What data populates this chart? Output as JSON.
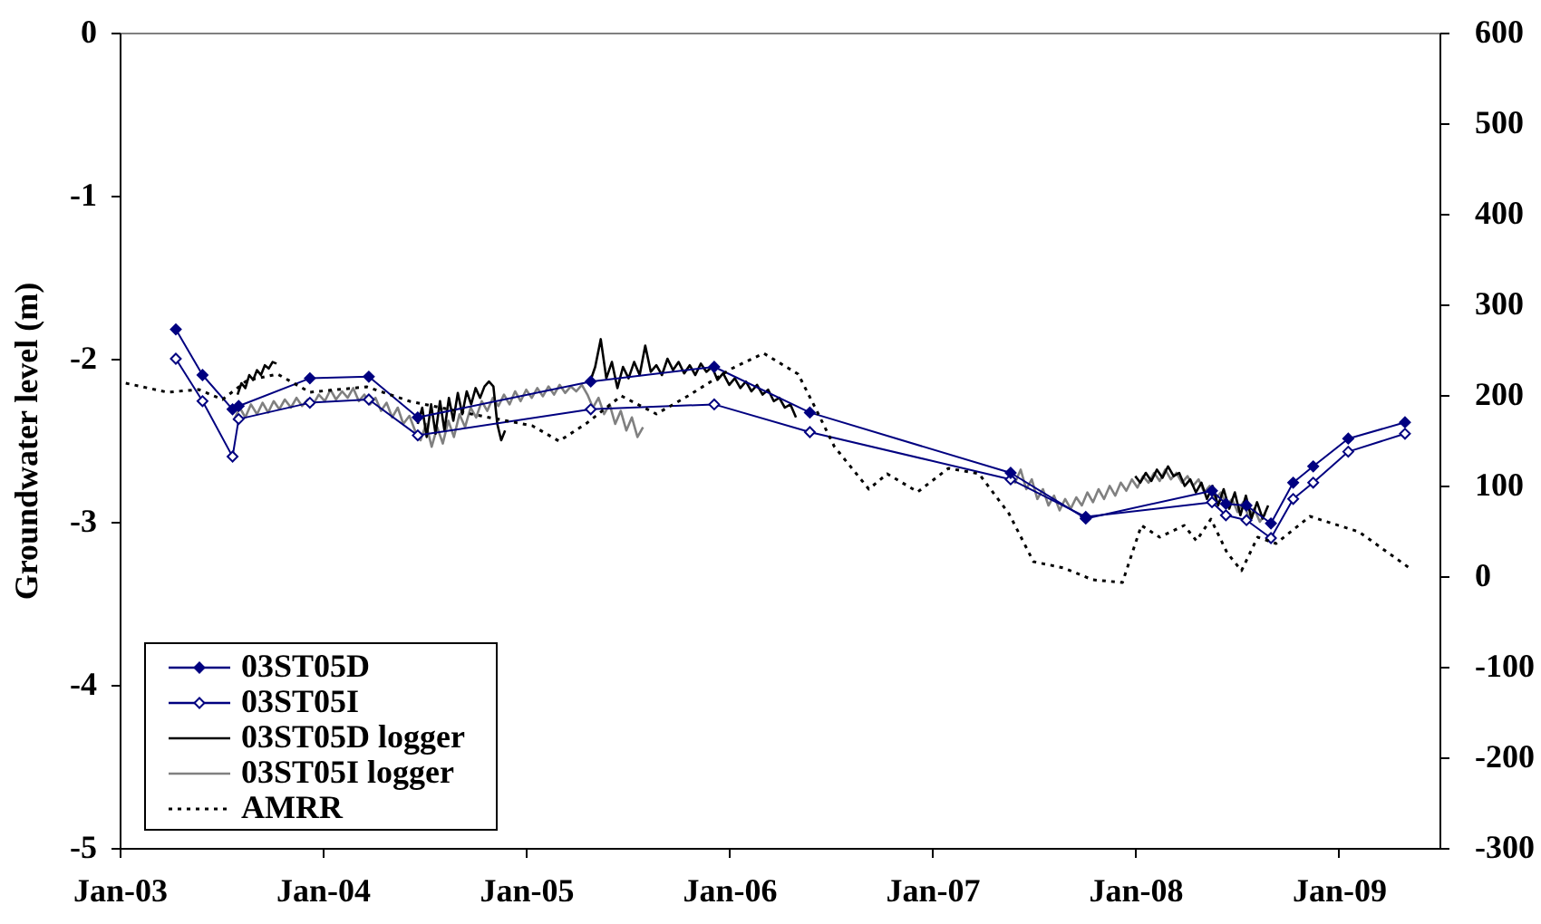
{
  "chart_data": {
    "type": "line",
    "ylabel": "Groundwater level (m)",
    "xlim": [
      "2003-01-01",
      "2009-07-01"
    ],
    "xticks": [
      {
        "value": "2003-01-01",
        "label": "Jan-03"
      },
      {
        "value": "2004-01-01",
        "label": "Jan-04"
      },
      {
        "value": "2005-01-01",
        "label": "Jan-05"
      },
      {
        "value": "2006-01-01",
        "label": "Jan-06"
      },
      {
        "value": "2007-01-01",
        "label": "Jan-07"
      },
      {
        "value": "2008-01-01",
        "label": "Jan-08"
      },
      {
        "value": "2009-01-01",
        "label": "Jan-09"
      }
    ],
    "ylim": [
      -5,
      0
    ],
    "yticks": [
      -5,
      -4,
      -3,
      -2,
      -1,
      0
    ],
    "y2lim": [
      -300,
      600
    ],
    "y2ticks": [
      -300,
      -200,
      -100,
      0,
      100,
      200,
      300,
      400,
      500,
      600
    ],
    "legend": "bottom left",
    "series": [
      {
        "name": "03ST05D",
        "color": "#000080",
        "marker": "diamond",
        "x": [
          "2003-04-12",
          "2003-05-30",
          "2003-07-23",
          "2003-08-03",
          "2003-12-09",
          "2004-03-24",
          "2004-06-20",
          "2005-04-27",
          "2005-12-05",
          "2006-05-26",
          "2007-05-22",
          "2007-10-04",
          "2008-05-18",
          "2008-06-12",
          "2008-07-19",
          "2008-09-01",
          "2008-10-11",
          "2008-11-16",
          "2009-01-18",
          "2009-04-30"
        ],
        "values": [
          -1.82,
          -2.1,
          -2.31,
          -2.29,
          -2.12,
          -2.11,
          -2.36,
          -2.14,
          -2.05,
          -2.33,
          -2.7,
          -2.98,
          -2.81,
          -2.89,
          -2.9,
          -3.01,
          -2.76,
          -2.66,
          -2.49,
          -2.39
        ]
      },
      {
        "name": "03ST05I",
        "color": "#000080",
        "marker": "diamond",
        "x": [
          "2003-04-12",
          "2003-05-30",
          "2003-07-23",
          "2003-08-03",
          "2003-12-09",
          "2004-03-24",
          "2004-06-20",
          "2005-04-27",
          "2005-12-05",
          "2006-05-26",
          "2007-05-22",
          "2007-10-04",
          "2008-05-18",
          "2008-06-12",
          "2008-07-19",
          "2008-09-01",
          "2008-10-11",
          "2008-11-16",
          "2009-01-18",
          "2009-04-30"
        ],
        "values": [
          -2.0,
          -2.26,
          -2.6,
          -2.37,
          -2.27,
          -2.25,
          -2.47,
          -2.31,
          -2.28,
          -2.45,
          -2.74,
          -2.97,
          -2.88,
          -2.96,
          -2.99,
          -3.1,
          -2.86,
          -2.76,
          -2.57,
          -2.46
        ]
      },
      {
        "name": "03ST05D logger",
        "color": "#000000",
        "marker": "none",
        "x": [
          "2003-08-01",
          "2003-08-08",
          "2003-08-15",
          "2003-08-22",
          "2003-08-29",
          "2003-09-05",
          "2003-09-12",
          "2003-09-19",
          "2003-09-26",
          "2003-10-03",
          "2003-10-10",
          "2004-01-01",
          "2004-06-20",
          "2004-06-28",
          "2004-07-06",
          "2004-07-14",
          "2004-07-22",
          "2004-07-30",
          "2004-08-07",
          "2004-08-15",
          "2004-08-23",
          "2004-08-31",
          "2004-09-08",
          "2004-09-16",
          "2004-09-24",
          "2004-10-02",
          "2004-10-10",
          "2004-10-18",
          "2004-10-26",
          "2004-11-03",
          "2004-11-10",
          "2004-11-17",
          "2004-11-24",
          "2005-02-01",
          "2005-04-25",
          "2005-05-05",
          "2005-05-15",
          "2005-05-25",
          "2005-06-04",
          "2005-06-14",
          "2005-06-24",
          "2005-07-04",
          "2005-07-14",
          "2005-07-24",
          "2005-08-03",
          "2005-08-13",
          "2005-08-23",
          "2005-09-02",
          "2005-09-12",
          "2005-09-22",
          "2005-10-02",
          "2005-10-12",
          "2005-10-22",
          "2005-11-01",
          "2005-11-11",
          "2005-11-21",
          "2005-12-01",
          "2005-12-11",
          "2005-12-21",
          "2006-01-01",
          "2006-01-11",
          "2006-01-21",
          "2006-01-31",
          "2006-02-10",
          "2006-02-20",
          "2006-03-02",
          "2006-03-12",
          "2006-03-22",
          "2006-04-01",
          "2006-04-11",
          "2006-04-21",
          "2006-05-01",
          "2007-01-01",
          "2008-01-01",
          "2008-01-10",
          "2008-01-20",
          "2008-01-30",
          "2008-02-09",
          "2008-02-19",
          "2008-02-29",
          "2008-03-10",
          "2008-03-20",
          "2008-03-30",
          "2008-04-09",
          "2008-04-19",
          "2008-04-29",
          "2008-05-09",
          "2008-05-19",
          "2008-05-29",
          "2008-06-08",
          "2008-06-18",
          "2008-06-28",
          "2008-07-08",
          "2008-07-18",
          "2008-07-28",
          "2008-08-07",
          "2008-08-17",
          "2008-08-27"
        ],
        "values": [
          -2.22,
          -2.15,
          -2.18,
          -2.1,
          -2.13,
          -2.07,
          -2.1,
          -2.04,
          -2.06,
          -2.02,
          -2.03,
          null,
          -2.4,
          -2.3,
          -2.48,
          -2.28,
          -2.46,
          -2.26,
          -2.44,
          -2.24,
          -2.38,
          -2.21,
          -2.34,
          -2.2,
          -2.28,
          -2.18,
          -2.24,
          -2.17,
          -2.14,
          -2.17,
          -2.4,
          -2.5,
          -2.44,
          null,
          -2.15,
          -2.05,
          -1.88,
          -2.12,
          -2.02,
          -2.18,
          -2.05,
          -2.12,
          -2.02,
          -2.1,
          -1.92,
          -2.08,
          -2.04,
          -2.1,
          -2.0,
          -2.07,
          -2.02,
          -2.09,
          -2.04,
          -2.1,
          -2.03,
          -2.08,
          -2.05,
          -2.13,
          -2.09,
          -2.16,
          -2.12,
          -2.18,
          -2.14,
          -2.2,
          -2.16,
          -2.22,
          -2.19,
          -2.26,
          -2.24,
          -2.3,
          -2.28,
          -2.36,
          null,
          -2.72,
          -2.76,
          -2.7,
          -2.75,
          -2.68,
          -2.73,
          -2.66,
          -2.72,
          -2.7,
          -2.78,
          -2.74,
          -2.82,
          -2.76,
          -2.86,
          -2.78,
          -2.9,
          -2.8,
          -2.92,
          -2.82,
          -2.96,
          -2.84,
          -2.98,
          -2.88,
          -2.98,
          -2.9
        ]
      },
      {
        "name": "03ST05I logger",
        "color": "#808080",
        "marker": "none",
        "x": [
          "2003-07-25",
          "2003-08-05",
          "2003-08-15",
          "2003-08-25",
          "2003-09-05",
          "2003-09-15",
          "2003-09-25",
          "2003-10-05",
          "2003-10-15",
          "2003-10-25",
          "2003-11-05",
          "2003-11-15",
          "2003-11-25",
          "2003-12-05",
          "2003-12-15",
          "2003-12-25",
          "2004-01-05",
          "2004-01-15",
          "2004-01-25",
          "2004-02-05",
          "2004-02-15",
          "2004-02-25",
          "2004-03-06",
          "2004-03-16",
          "2004-03-26",
          "2004-04-05",
          "2004-04-15",
          "2004-04-25",
          "2004-05-05",
          "2004-05-15",
          "2004-05-25",
          "2004-06-05",
          "2004-06-15",
          "2004-06-25",
          "2004-07-05",
          "2004-07-15",
          "2004-07-25",
          "2004-08-04",
          "2004-08-14",
          "2004-08-24",
          "2004-09-03",
          "2004-09-13",
          "2004-09-23",
          "2004-10-03",
          "2004-10-13",
          "2004-10-23",
          "2004-11-02",
          "2004-11-12",
          "2004-11-22",
          "2004-12-02",
          "2004-12-12",
          "2004-12-22",
          "2005-01-01",
          "2005-01-11",
          "2005-01-21",
          "2005-01-31",
          "2005-02-10",
          "2005-02-20",
          "2005-03-02",
          "2005-03-12",
          "2005-03-22",
          "2005-04-01",
          "2005-04-11",
          "2005-04-21",
          "2005-05-01",
          "2005-05-11",
          "2005-05-21",
          "2005-05-31",
          "2005-06-10",
          "2005-06-20",
          "2005-06-30",
          "2005-07-10",
          "2005-07-20",
          "2005-07-30",
          "2006-01-01",
          "2007-05-20",
          "2007-05-30",
          "2007-06-09",
          "2007-06-19",
          "2007-06-29",
          "2007-07-09",
          "2007-07-19",
          "2007-07-29",
          "2007-08-08",
          "2007-08-18",
          "2007-08-28",
          "2007-09-07",
          "2007-09-17",
          "2007-09-27",
          "2007-10-07",
          "2007-10-17",
          "2007-10-27",
          "2007-11-06",
          "2007-11-16",
          "2007-11-26",
          "2007-12-06",
          "2007-12-16",
          "2007-12-26",
          "2008-01-05",
          "2008-01-15",
          "2008-01-25",
          "2008-02-04",
          "2008-02-14",
          "2008-02-24",
          "2008-03-05",
          "2008-03-15",
          "2008-03-25",
          "2008-04-04",
          "2008-04-14",
          "2008-04-24",
          "2008-05-04",
          "2008-05-14",
          "2008-05-24",
          "2008-06-03",
          "2008-06-13",
          "2008-06-23",
          "2008-07-03",
          "2008-07-13",
          "2008-07-23",
          "2008-08-02",
          "2008-08-12",
          "2008-08-22"
        ],
        "values": [
          -2.38,
          -2.3,
          -2.36,
          -2.28,
          -2.34,
          -2.27,
          -2.33,
          -2.26,
          -2.31,
          -2.25,
          -2.3,
          -2.24,
          -2.29,
          -2.25,
          -2.28,
          -2.22,
          -2.26,
          -2.19,
          -2.25,
          -2.2,
          -2.24,
          -2.18,
          -2.26,
          -2.22,
          -2.28,
          -2.24,
          -2.32,
          -2.27,
          -2.36,
          -2.3,
          -2.4,
          -2.35,
          -2.44,
          -2.5,
          -2.4,
          -2.54,
          -2.42,
          -2.52,
          -2.38,
          -2.48,
          -2.34,
          -2.42,
          -2.3,
          -2.36,
          -2.26,
          -2.32,
          -2.24,
          -2.29,
          -2.22,
          -2.28,
          -2.2,
          -2.26,
          -2.19,
          -2.24,
          -2.18,
          -2.23,
          -2.17,
          -2.22,
          -2.16,
          -2.21,
          -2.17,
          -2.2,
          -2.16,
          -2.22,
          -2.3,
          -2.24,
          -2.34,
          -2.28,
          -2.4,
          -2.32,
          -2.44,
          -2.36,
          -2.48,
          -2.42,
          null,
          -2.7,
          -2.76,
          -2.68,
          -2.8,
          -2.74,
          -2.86,
          -2.8,
          -2.9,
          -2.84,
          -2.93,
          -2.86,
          -2.92,
          -2.85,
          -2.9,
          -2.82,
          -2.88,
          -2.8,
          -2.86,
          -2.78,
          -2.84,
          -2.76,
          -2.81,
          -2.74,
          -2.79,
          -2.72,
          -2.76,
          -2.7,
          -2.75,
          -2.68,
          -2.74,
          -2.7,
          -2.76,
          -2.72,
          -2.78,
          -2.74,
          -2.82,
          -2.78,
          -2.86,
          -2.82,
          -2.9,
          -2.86,
          -2.94,
          -2.88,
          -2.97,
          -2.92,
          -3.0,
          -2.95
        ]
      },
      {
        "name": "AMRR",
        "color": "#000000",
        "marker": "none",
        "line_style": "dotted",
        "axis": "y2",
        "x": [
          "2003-01-12",
          "2003-03-28",
          "2003-05-23",
          "2003-07-05",
          "2003-08-18",
          "2003-10-12",
          "2003-12-09",
          "2004-03-20",
          "2004-06-06",
          "2004-09-24",
          "2005-01-12",
          "2005-03-01",
          "2005-04-20",
          "2005-06-21",
          "2005-08-23",
          "2005-10-19",
          "2006-01-05",
          "2006-03-04",
          "2006-05-05",
          "2006-06-07",
          "2006-07-09",
          "2006-09-09",
          "2006-10-12",
          "2006-12-06",
          "2007-01-30",
          "2007-03-26",
          "2007-05-19",
          "2007-07-02",
          "2007-08-26",
          "2007-10-16",
          "2007-12-09",
          "2008-01-12",
          "2008-02-14",
          "2008-03-29",
          "2008-04-20",
          "2008-05-16",
          "2008-06-14",
          "2008-07-10",
          "2008-08-08",
          "2008-09-10",
          "2008-11-10",
          "2009-02-06",
          "2009-05-08"
        ],
        "values": [
          213,
          203,
          206,
          195,
          216,
          223,
          203,
          209,
          193,
          179,
          166,
          149,
          169,
          199,
          179,
          199,
          229,
          246,
          223,
          183,
          143,
          96,
          113,
          93,
          119,
          113,
          69,
          16,
          9,
          -4,
          -7,
          56,
          43,
          56,
          39,
          63,
          26,
          6,
          43,
          36,
          66,
          49,
          9
        ]
      }
    ]
  }
}
